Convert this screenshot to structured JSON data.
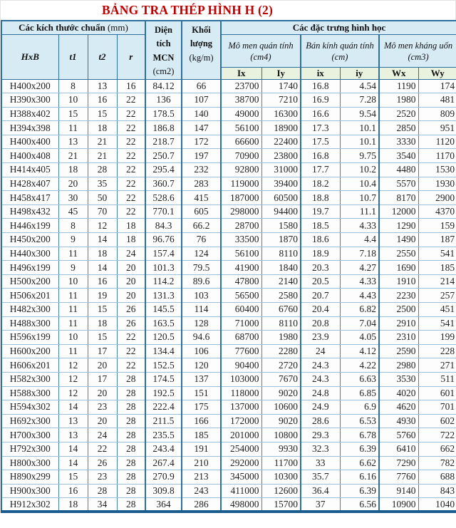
{
  "title": "BẢNG TRA THÉP HÌNH H (2)",
  "colors": {
    "title_red": "#c00000",
    "header_blue_bg": "#d7ebf5",
    "subheader_green_bg": "#e9f2df",
    "border_blue": "#3d7aa8",
    "border_dark_blue": "#1b5c8e",
    "row_bg": "#fdfdfd"
  },
  "table": {
    "header": {
      "dimensions_group": "Các kích thước chuẩn",
      "dimensions_unit": "(mm)",
      "area_name": "Diện tích\nMCN",
      "area_unit": "(cm2)",
      "mass_name": "Khối\nlượng",
      "mass_unit": "(kg/m)",
      "properties_group": "Các đặc trưng hình học",
      "moment_inertia_name": "Mô men quán tính",
      "moment_inertia_unit": "(cm4)",
      "radius_gyration_name": "Bán kính quán tính",
      "radius_gyration_unit": "(cm)",
      "section_modulus_name": "Mô men kháng uốn",
      "section_modulus_unit": "(cm3)",
      "col_hxb": "HxB",
      "col_t1": "t1",
      "col_t2": "t2",
      "col_r": "r",
      "sub_columns": [
        "Ix",
        "Iy",
        "ix",
        "iy",
        "Wx",
        "Wy"
      ]
    },
    "rows": [
      [
        "H400x200",
        8,
        13,
        16,
        84.12,
        66,
        23700,
        1740,
        16.8,
        4.54,
        1190,
        174
      ],
      [
        "H390x300",
        10,
        16,
        22,
        136,
        107,
        38700,
        7210,
        16.9,
        7.28,
        1980,
        481
      ],
      [
        "H388x402",
        15,
        15,
        22,
        178.5,
        140,
        49000,
        16300,
        16.6,
        9.54,
        2520,
        809
      ],
      [
        "H394x398",
        11,
        18,
        22,
        186.8,
        147,
        56100,
        18900,
        17.3,
        10.1,
        2850,
        951
      ],
      [
        "H400x400",
        13,
        21,
        22,
        218.7,
        172,
        66600,
        22400,
        17.5,
        10.1,
        3330,
        1120
      ],
      [
        "H400x408",
        21,
        21,
        22,
        250.7,
        197,
        70900,
        23800,
        16.8,
        9.75,
        3540,
        1170
      ],
      [
        "H414x405",
        18,
        28,
        22,
        295.4,
        232,
        92800,
        31000,
        17.7,
        10.2,
        4480,
        1530
      ],
      [
        "H428x407",
        20,
        35,
        22,
        360.7,
        283,
        119000,
        39400,
        18.2,
        10.4,
        5570,
        1930
      ],
      [
        "H458x417",
        30,
        50,
        22,
        528.6,
        415,
        187000,
        60500,
        18.8,
        10.7,
        8170,
        2900
      ],
      [
        "H498x432",
        45,
        70,
        22,
        770.1,
        605,
        298000,
        94400,
        19.7,
        11.1,
        12000,
        4370
      ],
      [
        "H446x199",
        8,
        12,
        18,
        84.3,
        66.2,
        28700,
        1580,
        18.5,
        4.33,
        1290,
        159
      ],
      [
        "H450x200",
        9,
        14,
        18,
        96.76,
        76,
        33500,
        1870,
        18.6,
        4.4,
        1490,
        187
      ],
      [
        "H440x300",
        11,
        18,
        24,
        157.4,
        124,
        56100,
        8110,
        18.9,
        7.18,
        2550,
        541
      ],
      [
        "H496x199",
        9,
        14,
        20,
        101.3,
        79.5,
        41900,
        1840,
        20.3,
        4.27,
        1690,
        185
      ],
      [
        "H500x200",
        10,
        16,
        20,
        114.2,
        89.6,
        47800,
        2140,
        20.5,
        4.33,
        1910,
        214
      ],
      [
        "H506x201",
        11,
        19,
        20,
        131.3,
        103,
        56500,
        2580,
        20.7,
        4.43,
        2230,
        257
      ],
      [
        "H482x300",
        11,
        15,
        26,
        145.5,
        114,
        60400,
        6760,
        20.4,
        6.82,
        2500,
        451
      ],
      [
        "H488x300",
        11,
        18,
        26,
        163.5,
        128,
        71000,
        8110,
        20.8,
        7.04,
        2910,
        541
      ],
      [
        "H596x199",
        10,
        15,
        22,
        120.5,
        94.6,
        68700,
        1980,
        23.9,
        4.05,
        2310,
        199
      ],
      [
        "H600x200",
        11,
        17,
        22,
        134.4,
        106,
        77600,
        2280,
        24,
        4.12,
        2590,
        228
      ],
      [
        "H606x201",
        12,
        20,
        22,
        152.5,
        120,
        90400,
        2720,
        24.3,
        4.22,
        2980,
        271
      ],
      [
        "H582x300",
        12,
        17,
        28,
        174.5,
        137,
        103000,
        7670,
        24.3,
        6.63,
        3530,
        511
      ],
      [
        "H588x300",
        12,
        20,
        28,
        192.5,
        151,
        118000,
        9020,
        24.8,
        6.85,
        4020,
        601
      ],
      [
        "H594x302",
        14,
        23,
        28,
        222.4,
        175,
        137000,
        10600,
        24.9,
        6.9,
        4620,
        701
      ],
      [
        "H692x300",
        13,
        20,
        28,
        211.5,
        166,
        172000,
        9020,
        28.6,
        6.53,
        4930,
        602
      ],
      [
        "H700x300",
        13,
        24,
        28,
        235.5,
        185,
        201000,
        10800,
        29.3,
        6.78,
        5760,
        722
      ],
      [
        "H792x300",
        14,
        22,
        28,
        243.4,
        191,
        254000,
        9930,
        32.3,
        6.39,
        6410,
        662
      ],
      [
        "H800x300",
        14,
        26,
        28,
        267.4,
        210,
        292000,
        11700,
        33,
        6.62,
        7290,
        782
      ],
      [
        "H890x299",
        15,
        23,
        28,
        270.9,
        213,
        345000,
        10300,
        35.7,
        6.16,
        7760,
        688
      ],
      [
        "H900x300",
        16,
        28,
        28,
        309.8,
        243,
        411000,
        12600,
        36.4,
        6.39,
        9140,
        843
      ],
      [
        "H912x302",
        18,
        34,
        28,
        364,
        286,
        498000,
        15700,
        37,
        6.56,
        10900,
        1040
      ]
    ]
  }
}
